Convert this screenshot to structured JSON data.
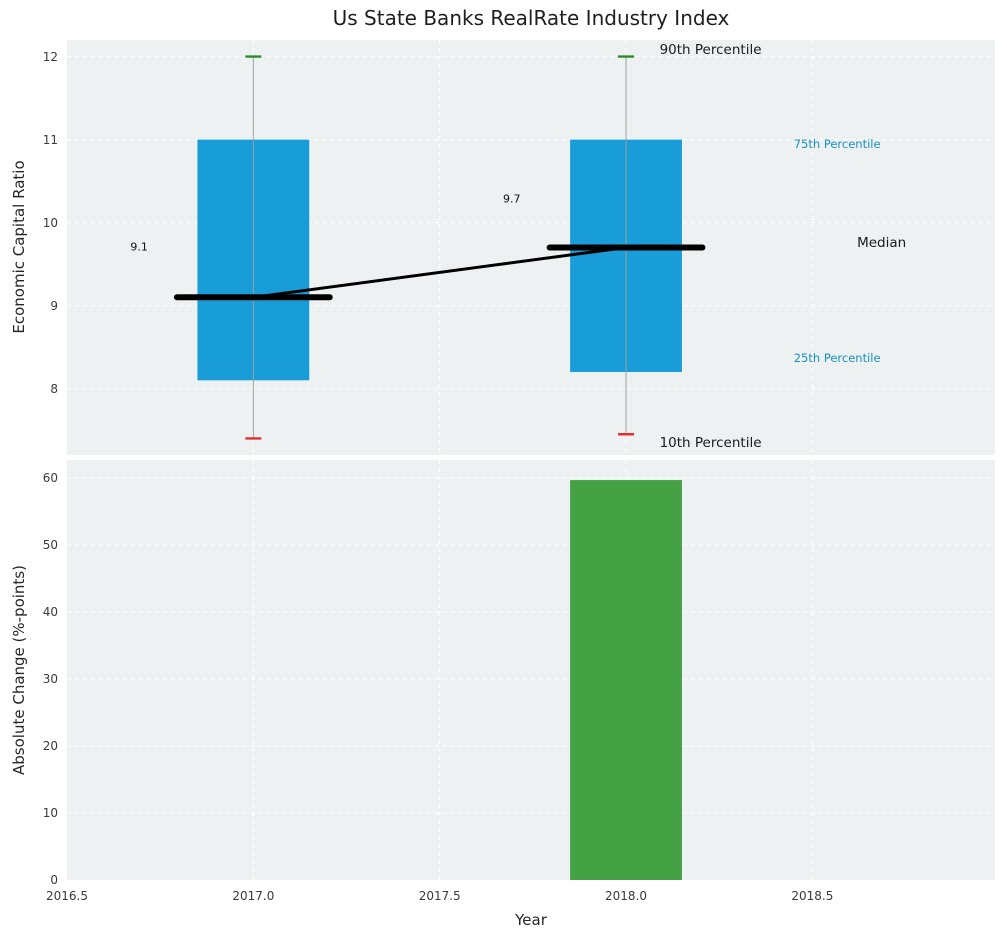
{
  "title": "Us State Banks RealRate Industry Index",
  "colors": {
    "figure_bg": "#ffffff",
    "panel_bg": "#edf1f2",
    "grid": "#ffffff",
    "box_fill": "#189dd9",
    "bar_fill": "#44a144",
    "whisker": "#a0a0a0",
    "cap_top": "#2e8b2e",
    "cap_bottom": "#e03030",
    "median_line": "#000000",
    "trend_line": "#000000",
    "label_dark": "#1a1a1a",
    "label_blue": "#1890c0",
    "tick_text": "#3a3a3a"
  },
  "chart_data": [
    {
      "type": "boxplot",
      "ylabel": "Economic Capital Ratio",
      "ylim": [
        7.2,
        12.2
      ],
      "xlim": [
        2016.5,
        2018.99
      ],
      "grid": true,
      "yticks": [
        {
          "label": "8",
          "value": 8
        },
        {
          "label": "9",
          "value": 9
        },
        {
          "label": "10",
          "value": 10
        },
        {
          "label": "11",
          "value": 11
        },
        {
          "label": "12",
          "value": 12
        }
      ],
      "boxes": [
        {
          "x": 2017,
          "width": 0.3,
          "p10": 7.4,
          "p25": 8.1,
          "median": 9.1,
          "p75": 11.0,
          "p90": 12.0
        },
        {
          "x": 2018,
          "width": 0.3,
          "p10": 7.45,
          "p25": 8.2,
          "median": 9.7,
          "p75": 11.0,
          "p90": 12.0
        }
      ],
      "median_trend": [
        {
          "x": 2017,
          "y": 9.1
        },
        {
          "x": 2018,
          "y": 9.7
        }
      ],
      "annotations": [
        {
          "id": "90th-percentile",
          "text": "90th Percentile",
          "x": 2018.09,
          "y": 12.08,
          "size": 13.5,
          "color": "#1a1a1a"
        },
        {
          "id": "75th-percentile",
          "text": "75th Percentile",
          "x": 2018.45,
          "y": 10.95,
          "size": 11.5,
          "color": "#1890c0"
        },
        {
          "id": "median",
          "text": "Median",
          "x": 2018.62,
          "y": 9.75,
          "size": 13.5,
          "color": "#1a1a1a"
        },
        {
          "id": "25th-percentile",
          "text": "25th Percentile",
          "x": 2018.45,
          "y": 8.37,
          "size": 11.5,
          "color": "#1890c0"
        },
        {
          "id": "10th-percentile",
          "text": "10th Percentile",
          "x": 2018.09,
          "y": 7.35,
          "size": 13.5,
          "color": "#1a1a1a"
        },
        {
          "id": "median-value-2017",
          "text": "9.1",
          "x": 2016.67,
          "y": 9.71,
          "size": 11,
          "color": "#111111"
        },
        {
          "id": "median-value-2018",
          "text": "9.7",
          "x": 2017.67,
          "y": 10.28,
          "size": 11,
          "color": "#111111"
        }
      ]
    },
    {
      "type": "bar",
      "ylabel": "Absolute Change (%-points)",
      "xlabel": "Year",
      "ylim": [
        0,
        62.7
      ],
      "xlim": [
        2016.5,
        2018.99
      ],
      "grid": true,
      "yticks": [
        {
          "label": "0",
          "value": 0
        },
        {
          "label": "10",
          "value": 10
        },
        {
          "label": "20",
          "value": 20
        },
        {
          "label": "30",
          "value": 30
        },
        {
          "label": "40",
          "value": 40
        },
        {
          "label": "50",
          "value": 50
        },
        {
          "label": "60",
          "value": 60
        }
      ],
      "xticks": [
        {
          "label": "2016.5",
          "value": 2016.5
        },
        {
          "label": "2017.0",
          "value": 2017.0
        },
        {
          "label": "2017.5",
          "value": 2017.5
        },
        {
          "label": "2018.0",
          "value": 2018.0
        },
        {
          "label": "2018.5",
          "value": 2018.5
        }
      ],
      "bars": [
        {
          "x": 2018,
          "width": 0.3,
          "value": 59.7
        }
      ]
    }
  ]
}
